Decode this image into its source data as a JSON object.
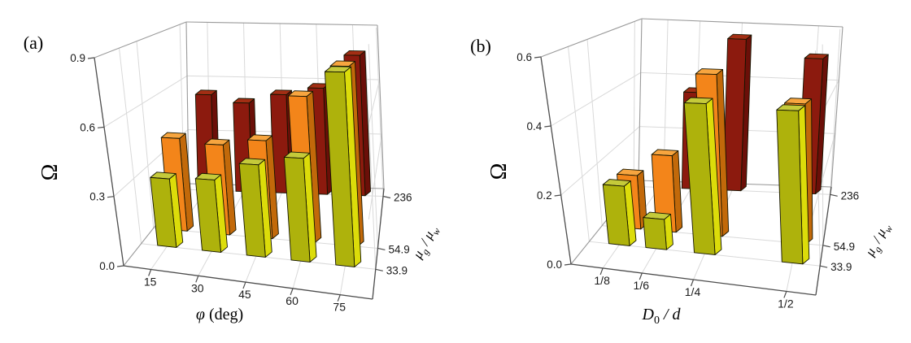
{
  "figure": {
    "background": "#ffffff",
    "description": "Two 3D bar chart panels"
  },
  "chart_data": [
    {
      "type": "bar",
      "projection": "3d",
      "panel_label": "(a)",
      "title": "",
      "grid": true,
      "legend_position": "none",
      "value_axis": {
        "label": "Ω",
        "ticks": [
          "0.0",
          "0.3",
          "0.6",
          "0.9"
        ],
        "max": 0.9,
        "lim": [
          0,
          0.9
        ]
      },
      "x_axis": {
        "label": "φ (deg)",
        "label_parts": [
          {
            "t": "φ",
            "italic": true
          },
          {
            "t": " (deg)",
            "italic": false
          }
        ],
        "categories": [
          "15",
          "30",
          "45",
          "60",
          "75"
        ]
      },
      "depth_axis": {
        "label": "μg / μw",
        "label_parts": [
          {
            "t": "μ",
            "italic": true
          },
          {
            "t": "g",
            "italic": true,
            "sub": true
          },
          {
            "t": " / ",
            "italic": true
          },
          {
            "t": "μ",
            "italic": true
          },
          {
            "t": "w",
            "italic": true,
            "sub": true
          }
        ],
        "categories": [
          "33.9",
          "54.9",
          "236"
        ]
      },
      "series": [
        {
          "name": "33.9",
          "front": "#aeb20c",
          "side": "#dcdc0a",
          "top": "#c5ca3a",
          "values": [
            0.31,
            0.32,
            0.4,
            0.44,
            0.81
          ]
        },
        {
          "name": "54.9",
          "front": "#f3851a",
          "side": "#c2690a",
          "top": "#f7a53f",
          "values": [
            0.44,
            0.42,
            0.45,
            0.66,
            0.8
          ]
        },
        {
          "name": "236",
          "front": "#8c1a0e",
          "side": "#6b0f08",
          "top": "#a32e14",
          "values": [
            0.52,
            0.48,
            0.53,
            0.57,
            0.75
          ]
        }
      ]
    },
    {
      "type": "bar",
      "projection": "3d",
      "panel_label": "(b)",
      "title": "",
      "grid": true,
      "legend_position": "none",
      "value_axis": {
        "label": "Ω",
        "ticks": [
          "0.0",
          "0.2",
          "0.4",
          "0.6"
        ],
        "max": 0.6,
        "lim": [
          0,
          0.6
        ]
      },
      "x_axis": {
        "label": "D₀ / d",
        "label_parts": [
          {
            "t": "D",
            "italic": true
          },
          {
            "t": "0",
            "italic": false,
            "sub": true
          },
          {
            "t": " / ",
            "italic": true
          },
          {
            "t": "d",
            "italic": true
          }
        ],
        "categories": [
          "1/8",
          "1/6",
          "1/4",
          "1/2"
        ]
      },
      "depth_axis": {
        "label": "μg / μw",
        "label_parts": [
          {
            "t": "μ",
            "italic": true
          },
          {
            "t": "g",
            "italic": true,
            "sub": true
          },
          {
            "t": " / ",
            "italic": true
          },
          {
            "t": "μ",
            "italic": true
          },
          {
            "t": "w",
            "italic": true,
            "sub": true
          }
        ],
        "categories": [
          "33.9",
          "54.9",
          "236"
        ]
      },
      "series": [
        {
          "name": "33.9",
          "front": "#aeb20c",
          "side": "#dcdc0a",
          "top": "#c5ca3a",
          "values": [
            0.18,
            0.09,
            0.44,
            0.43
          ]
        },
        {
          "name": "54.9",
          "front": "#f3851a",
          "side": "#c2690a",
          "top": "#f7a53f",
          "values": [
            0.17,
            0.24,
            0.5,
            0.42
          ]
        },
        {
          "name": "236",
          "front": "#8c1a0e",
          "side": "#6b0f08",
          "top": "#a32e14",
          "values": [
            null,
            0.35,
            0.55,
            0.49
          ]
        }
      ]
    }
  ],
  "colors": {
    "gridline": "#d9d9d9",
    "wall_edge": "#9a9a9a",
    "axis_edge": "#4d4d4d",
    "bar_outline": "#141400"
  }
}
